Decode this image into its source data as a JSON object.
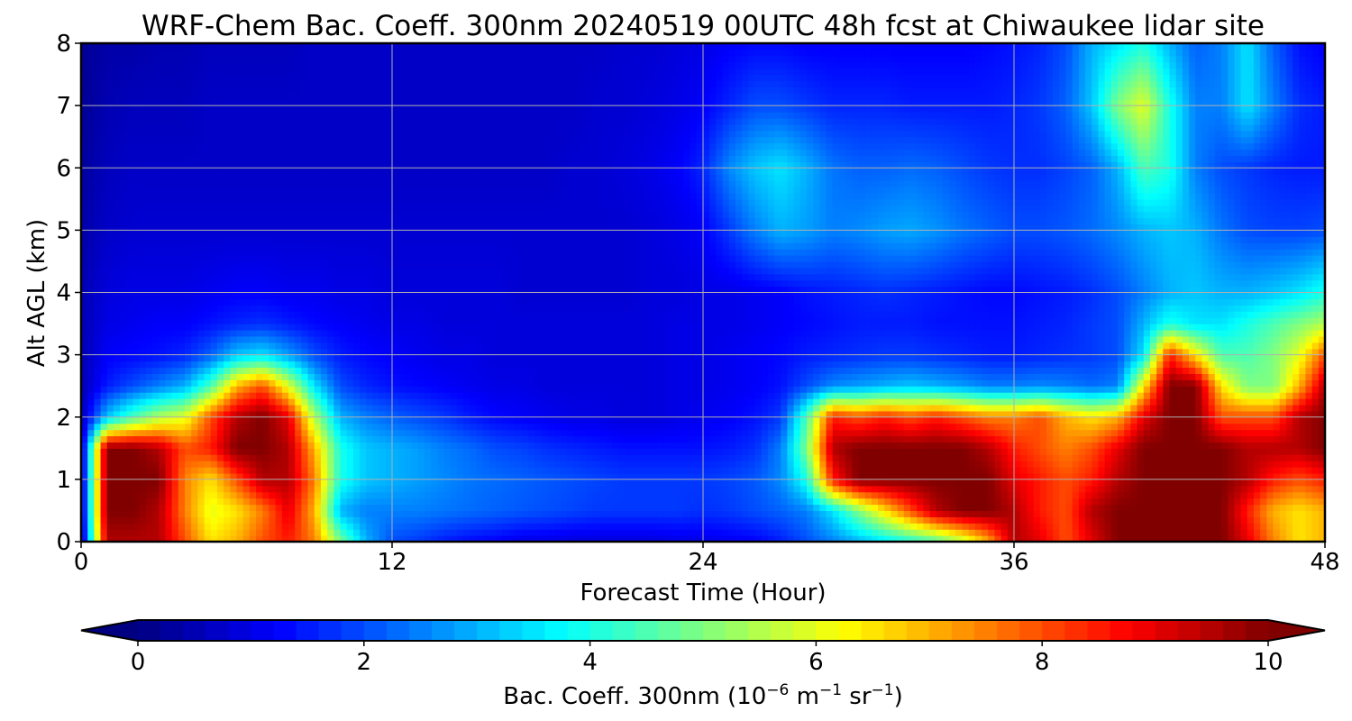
{
  "chart_data": {
    "type": "heatmap",
    "title": "WRF-Chem Bac. Coeff. 300nm  20240519 00UTC 48h fcst at Chiwaukee lidar site",
    "xlabel": "Forecast Time (Hour)",
    "ylabel": "Alt AGL (km)",
    "xlim": [
      0,
      48
    ],
    "ylim": [
      0,
      8
    ],
    "xticks": [
      0,
      12,
      24,
      36,
      48
    ],
    "yticks": [
      0,
      1,
      2,
      3,
      4,
      5,
      6,
      7,
      8
    ],
    "grid": true,
    "colormap": "jet",
    "colorbar": {
      "label_main": "Bac. Coeff. 300nm  (10",
      "label_exp1": "−6",
      "label_mid": " m",
      "label_exp2": "−1",
      "label_mid2": " sr",
      "label_exp3": "−1",
      "label_end": ")",
      "range": [
        0,
        10
      ],
      "ticks": [
        0,
        2,
        4,
        6,
        8,
        10
      ],
      "extend": "both",
      "orientation": "horizontal"
    },
    "x": [
      0,
      1,
      2,
      3,
      4,
      5,
      6,
      7,
      8,
      9,
      10,
      11,
      12,
      13,
      14,
      15,
      16,
      17,
      18,
      19,
      20,
      21,
      22,
      23,
      24,
      25,
      26,
      27,
      28,
      29,
      30,
      31,
      32,
      33,
      34,
      35,
      36,
      37,
      38,
      39,
      40,
      41,
      42,
      43,
      44,
      45,
      46,
      47,
      48
    ],
    "y": [
      0,
      0.5,
      1,
      1.5,
      2,
      2.5,
      3,
      3.5,
      4,
      5,
      6,
      7,
      8
    ],
    "z": [
      [
        0.3,
        9.5,
        9.5,
        9.5,
        8.0,
        6.5,
        7.0,
        8.0,
        8.5,
        7.5,
        5.0,
        3.0,
        2.0,
        1.8,
        1.5,
        1.3,
        1.2,
        1.0,
        1.0,
        0.9,
        0.9,
        0.9,
        0.9,
        1.0,
        1.0,
        1.1,
        1.2,
        1.5,
        2.0,
        2.5,
        3.0,
        3.5,
        4.0,
        4.5,
        5.5,
        7.0,
        9.5,
        9.0,
        8.0,
        9.0,
        10.0,
        10.0,
        10.0,
        10.0,
        10.0,
        9.0,
        7.5,
        6.5,
        7.0
      ],
      [
        0.5,
        10.0,
        10.0,
        9.5,
        7.5,
        6.0,
        6.5,
        7.5,
        9.0,
        7.0,
        3.0,
        2.5,
        2.5,
        2.5,
        2.4,
        2.3,
        2.2,
        2.1,
        2.0,
        1.9,
        1.8,
        1.8,
        1.8,
        1.8,
        1.7,
        1.8,
        2.0,
        2.2,
        2.5,
        3.5,
        5.0,
        6.5,
        8.0,
        9.5,
        10.0,
        10.0,
        9.5,
        8.5,
        8.0,
        9.5,
        10.0,
        10.0,
        10.0,
        10.0,
        10.0,
        8.5,
        7.0,
        6.5,
        7.0
      ],
      [
        0.5,
        10.0,
        10.0,
        10.0,
        7.5,
        6.5,
        8.0,
        9.5,
        9.5,
        7.5,
        4.0,
        3.2,
        3.0,
        2.8,
        2.6,
        2.4,
        2.3,
        2.2,
        2.1,
        2.0,
        1.9,
        1.8,
        1.8,
        1.8,
        1.8,
        1.9,
        2.1,
        2.6,
        4.0,
        8.5,
        10.0,
        10.0,
        10.0,
        10.0,
        10.0,
        10.0,
        9.0,
        8.5,
        8.0,
        8.5,
        9.5,
        10.0,
        10.0,
        10.0,
        10.0,
        9.5,
        8.5,
        8.0,
        8.5
      ],
      [
        0.5,
        10.0,
        10.0,
        9.5,
        8.0,
        8.5,
        10.0,
        10.0,
        9.5,
        7.0,
        4.0,
        3.2,
        3.0,
        2.8,
        2.5,
        2.3,
        2.0,
        1.9,
        1.7,
        1.6,
        1.5,
        1.4,
        1.4,
        1.4,
        1.4,
        1.5,
        1.7,
        2.5,
        5.0,
        9.5,
        10.0,
        10.0,
        10.0,
        10.0,
        10.0,
        9.5,
        8.5,
        8.0,
        7.5,
        8.0,
        9.0,
        10.0,
        10.0,
        10.0,
        10.0,
        9.5,
        9.5,
        9.5,
        10.0
      ],
      [
        0.5,
        3.2,
        4.5,
        5.5,
        6.0,
        8.0,
        9.5,
        10.0,
        9.0,
        5.5,
        3.0,
        2.5,
        2.2,
        2.0,
        1.8,
        1.5,
        1.3,
        1.2,
        1.1,
        1.0,
        1.0,
        0.9,
        0.9,
        1.0,
        1.1,
        1.2,
        1.4,
        1.8,
        4.5,
        8.5,
        8.0,
        8.5,
        8.0,
        8.5,
        8.0,
        7.5,
        7.5,
        8.0,
        7.0,
        6.5,
        7.0,
        9.0,
        10.0,
        10.0,
        8.0,
        8.0,
        8.0,
        9.5,
        10.0
      ],
      [
        0.5,
        1.5,
        2.0,
        2.5,
        3.0,
        4.5,
        7.0,
        8.0,
        6.0,
        3.5,
        2.0,
        1.6,
        1.4,
        1.3,
        1.2,
        1.1,
        1.0,
        1.0,
        0.9,
        0.9,
        0.9,
        0.9,
        0.9,
        1.0,
        1.0,
        1.1,
        1.2,
        1.4,
        2.0,
        2.6,
        2.8,
        3.0,
        3.2,
        3.0,
        2.8,
        2.5,
        2.5,
        2.6,
        2.5,
        2.3,
        2.5,
        6.5,
        10.0,
        10.0,
        6.5,
        5.0,
        5.0,
        7.0,
        9.5
      ],
      [
        0.5,
        1.2,
        1.3,
        1.4,
        1.6,
        2.2,
        3.2,
        3.5,
        2.8,
        2.0,
        1.5,
        1.3,
        1.2,
        1.1,
        1.0,
        1.0,
        0.9,
        0.9,
        0.9,
        0.9,
        0.9,
        0.9,
        0.9,
        1.0,
        1.0,
        1.1,
        1.2,
        1.3,
        1.5,
        1.6,
        1.7,
        1.8,
        1.8,
        1.7,
        1.6,
        1.5,
        1.5,
        1.6,
        1.7,
        1.8,
        2.0,
        3.5,
        8.5,
        6.5,
        4.5,
        4.5,
        5.0,
        6.0,
        8.0
      ],
      [
        0.5,
        1.0,
        1.1,
        1.2,
        1.2,
        1.4,
        1.6,
        1.7,
        1.5,
        1.3,
        1.2,
        1.1,
        1.0,
        1.0,
        0.9,
        0.9,
        0.9,
        0.9,
        0.9,
        0.9,
        0.9,
        0.9,
        0.9,
        1.0,
        1.0,
        1.0,
        1.1,
        1.2,
        1.3,
        1.4,
        1.5,
        1.5,
        1.5,
        1.4,
        1.4,
        1.4,
        1.4,
        1.5,
        1.6,
        1.8,
        2.0,
        3.0,
        4.0,
        3.5,
        3.5,
        4.0,
        4.5,
        5.0,
        5.5
      ],
      [
        0.5,
        0.9,
        1.0,
        1.0,
        1.0,
        1.1,
        1.2,
        1.2,
        1.1,
        1.1,
        1.0,
        1.0,
        0.9,
        0.9,
        0.9,
        0.9,
        0.9,
        0.8,
        0.8,
        0.8,
        0.8,
        0.8,
        0.9,
        0.9,
        1.0,
        1.0,
        1.1,
        1.2,
        1.4,
        1.5,
        1.6,
        1.7,
        1.6,
        1.5,
        1.4,
        1.3,
        1.3,
        1.4,
        1.5,
        1.7,
        2.0,
        2.5,
        3.0,
        3.2,
        3.0,
        3.0,
        3.2,
        3.5,
        4.0
      ],
      [
        0.4,
        0.7,
        0.8,
        0.8,
        0.8,
        0.8,
        0.8,
        0.8,
        0.8,
        0.8,
        0.8,
        0.8,
        0.8,
        0.8,
        0.8,
        0.8,
        0.8,
        0.8,
        0.8,
        0.8,
        0.8,
        0.8,
        0.9,
        1.0,
        1.2,
        1.8,
        2.5,
        3.0,
        2.8,
        2.5,
        2.6,
        2.8,
        2.9,
        2.7,
        2.4,
        2.2,
        2.0,
        2.0,
        2.1,
        2.3,
        2.6,
        3.0,
        3.2,
        3.0,
        2.4,
        2.0,
        1.9,
        1.9,
        2.0
      ],
      [
        0.3,
        0.6,
        0.7,
        0.7,
        0.7,
        0.7,
        0.7,
        0.7,
        0.7,
        0.7,
        0.7,
        0.7,
        0.7,
        0.7,
        0.7,
        0.7,
        0.7,
        0.7,
        0.7,
        0.8,
        0.8,
        0.9,
        1.0,
        1.2,
        1.6,
        2.6,
        3.2,
        3.5,
        3.0,
        2.4,
        2.2,
        2.2,
        2.3,
        2.2,
        2.0,
        1.8,
        1.7,
        1.7,
        1.9,
        2.2,
        3.0,
        4.5,
        4.0,
        2.5,
        2.0,
        1.8,
        1.6,
        1.5,
        1.5
      ],
      [
        0.2,
        0.5,
        0.6,
        0.6,
        0.6,
        0.7,
        0.7,
        0.7,
        0.7,
        0.7,
        0.7,
        0.7,
        0.7,
        0.7,
        0.7,
        0.7,
        0.7,
        0.7,
        0.7,
        0.7,
        0.8,
        0.8,
        0.9,
        1.0,
        1.2,
        1.6,
        2.0,
        2.0,
        1.8,
        1.6,
        1.6,
        1.6,
        1.5,
        1.5,
        1.5,
        1.5,
        1.6,
        1.8,
        2.2,
        3.2,
        5.0,
        6.0,
        4.0,
        2.5,
        2.5,
        3.5,
        2.5,
        1.7,
        1.5
      ],
      [
        0.2,
        0.4,
        0.4,
        0.5,
        0.5,
        0.6,
        0.6,
        0.6,
        0.6,
        0.7,
        0.7,
        0.7,
        0.7,
        0.7,
        0.7,
        0.7,
        0.7,
        0.7,
        0.7,
        0.7,
        0.7,
        0.8,
        0.8,
        0.9,
        1.0,
        1.2,
        1.3,
        1.3,
        1.2,
        1.2,
        1.2,
        1.2,
        1.2,
        1.2,
        1.2,
        1.3,
        1.4,
        1.6,
        2.0,
        3.0,
        3.5,
        4.0,
        3.0,
        2.2,
        2.5,
        3.5,
        2.2,
        1.4,
        1.2
      ]
    ]
  }
}
